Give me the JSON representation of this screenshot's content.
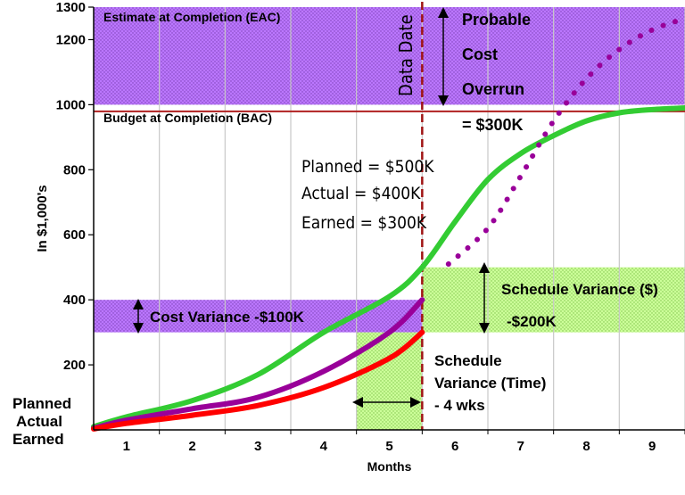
{
  "chart_data": {
    "type": "line",
    "xlabel": "Months",
    "ylabel": "In $1,000's",
    "xlim": [
      0.5,
      9.5
    ],
    "ylim": [
      0,
      1300
    ],
    "x_ticks": [
      "1",
      "2",
      "3",
      "4",
      "5",
      "6",
      "7",
      "8",
      "9"
    ],
    "y_ticks": [
      200,
      400,
      600,
      800,
      1000,
      1200,
      1300
    ],
    "grid": "vertical",
    "data_date": 5.5,
    "series": [
      {
        "name": "Planned",
        "color": "#33cc33",
        "style": "solid",
        "x": [
          0.5,
          1,
          2,
          3,
          4,
          5,
          5.5,
          6,
          6.5,
          7,
          7.5,
          8,
          8.5,
          9,
          9.5
        ],
        "y": [
          10,
          40,
          90,
          170,
          300,
          410,
          500,
          640,
          770,
          850,
          905,
          950,
          975,
          985,
          990
        ]
      },
      {
        "name": "Actual",
        "color": "#990099",
        "style": "solid",
        "x": [
          0.5,
          1,
          2,
          3,
          4,
          5,
          5.5
        ],
        "y": [
          5,
          30,
          65,
          100,
          180,
          300,
          400
        ]
      },
      {
        "name": "Earned",
        "color": "#ff0000",
        "style": "solid",
        "x": [
          0.5,
          1,
          2,
          3,
          4,
          5,
          5.5
        ],
        "y": [
          3,
          20,
          45,
          75,
          130,
          220,
          300
        ]
      },
      {
        "name": "",
        "color": "#990099",
        "style": "dotted",
        "x": [
          5.9,
          6.5,
          7,
          7.5,
          8,
          8.5,
          9,
          9.5
        ],
        "y": [
          510,
          620,
          780,
          950,
          1080,
          1170,
          1230,
          1265
        ]
      }
    ],
    "bands": [
      {
        "label": "Estimate at Completion (EAC)",
        "y": [
          1000,
          1300
        ],
        "x": [
          0.5,
          9.5
        ],
        "color": "#bb77ff"
      },
      {
        "label": "Cost Variance -$100K",
        "y": [
          300,
          400
        ],
        "x": [
          0.5,
          5.5
        ],
        "color": "#bb77ff"
      },
      {
        "label": "Schedule Variance ($) -$200K",
        "y": [
          300,
          500
        ],
        "x": [
          5.5,
          9.5
        ],
        "color": "#ccff99"
      },
      {
        "label": "Schedule Variance (Time) - 4 wks",
        "y": [
          0,
          300
        ],
        "x": [
          4.5,
          5.5
        ],
        "color": "#ccff99"
      }
    ],
    "lines": [
      {
        "label": "Budget at Completion (BAC)",
        "y": 985,
        "color": "#b02020"
      }
    ]
  },
  "labels": {
    "eac": "Estimate at Completion (EAC)",
    "bac": "Budget at Completion (BAC)",
    "data_date": "Data Date",
    "probable": "Probable",
    "cost": "Cost",
    "overrun": "Overrun",
    "overrun_value": "= $300K",
    "planned_value": "Planned = $500K",
    "actual_value": "Actual    = $400K",
    "earned_value": "Earned   = $300K",
    "cost_variance": "Cost Variance -$100K",
    "schedule_variance_dollars": "Schedule Variance ($)",
    "schedule_variance_dollars_value": "-$200K",
    "schedule_variance_time_1": "Schedule",
    "schedule_variance_time_2": "Variance (Time)",
    "schedule_variance_time_3": "- 4 wks"
  },
  "legend": [
    {
      "label": "Planned",
      "color": "#33cc33"
    },
    {
      "label": "Actual",
      "color": "#cc00cc"
    },
    {
      "label": "Earned",
      "color": "#ff0000"
    }
  ]
}
